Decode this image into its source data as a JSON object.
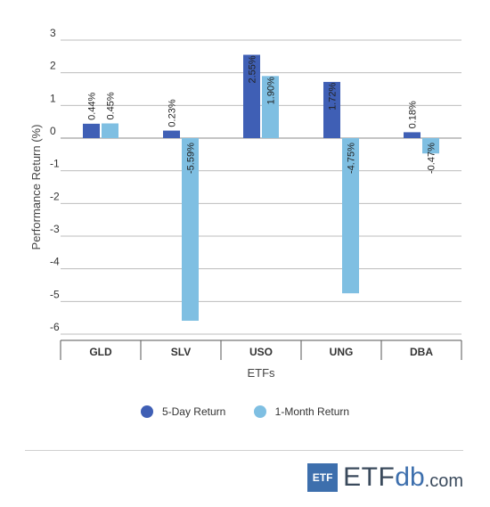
{
  "chart_data": {
    "type": "bar",
    "title": "",
    "xlabel": "ETFs",
    "ylabel": "Performance Return (%)",
    "ylim": [
      -6,
      3
    ],
    "yticks": [
      3,
      2,
      1,
      0,
      -1,
      -2,
      -3,
      -4,
      -5,
      -6
    ],
    "categories": [
      "GLD",
      "SLV",
      "USO",
      "UNG",
      "DBA"
    ],
    "series": [
      {
        "name": "5-Day Return",
        "color": "#3f5fb5",
        "values": [
          0.44,
          0.23,
          2.55,
          1.72,
          0.18
        ],
        "labels": [
          "0.44%",
          "0.23%",
          "2.55%",
          "1.72%",
          "0.18%"
        ]
      },
      {
        "name": "1-Month Return",
        "color": "#7fbfe2",
        "values": [
          0.45,
          -5.59,
          1.9,
          -4.75,
          -0.47
        ],
        "labels": [
          "0.45%",
          "-5.59%",
          "1.90%",
          "-4.75%",
          "-0.47%"
        ]
      }
    ],
    "grid": true,
    "legend": "bottom"
  },
  "logo": {
    "box_text": "ETF",
    "main": "ETF",
    "accent": "db",
    "suffix": ".com"
  }
}
